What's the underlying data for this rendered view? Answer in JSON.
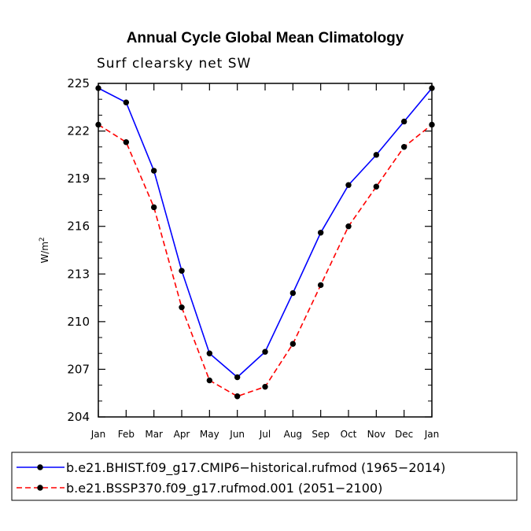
{
  "chart_data": {
    "type": "line",
    "title": "Annual Cycle Global Mean Climatology",
    "subtitle": "Surf clearsky net SW",
    "ylabel_base": "W/m",
    "ylabel_sup": "2",
    "categories": [
      "Jan",
      "Feb",
      "Mar",
      "Apr",
      "May",
      "Jun",
      "Jul",
      "Aug",
      "Sep",
      "Oct",
      "Nov",
      "Dec",
      "Jan"
    ],
    "ylim": [
      204,
      225
    ],
    "yticks": [
      204,
      207,
      210,
      213,
      216,
      219,
      222,
      225
    ],
    "series": [
      {
        "name": "b.e21.BHIST.f09_g17.CMIP6-historical.rufmod (1965-2014)",
        "label": "b.e21.BHIST.f09_g17.CMIP6−historical.rufmod (1965−2014)",
        "color": "#0000ff",
        "dash": "solid",
        "values": [
          224.7,
          223.8,
          219.5,
          213.2,
          208.0,
          206.5,
          208.1,
          211.8,
          215.6,
          218.6,
          220.5,
          222.6,
          224.7
        ]
      },
      {
        "name": "b.e21.BSSP370.f09_g17.rufmod.001 (2051-2100)",
        "label": "b.e21.BSSP370.f09_g17.rufmod.001 (2051−2100)",
        "color": "#ff0000",
        "dash": "dashed",
        "values": [
          222.4,
          221.3,
          217.2,
          210.9,
          206.3,
          205.3,
          205.9,
          208.6,
          212.3,
          216.0,
          218.5,
          221.0,
          222.4
        ]
      }
    ]
  }
}
